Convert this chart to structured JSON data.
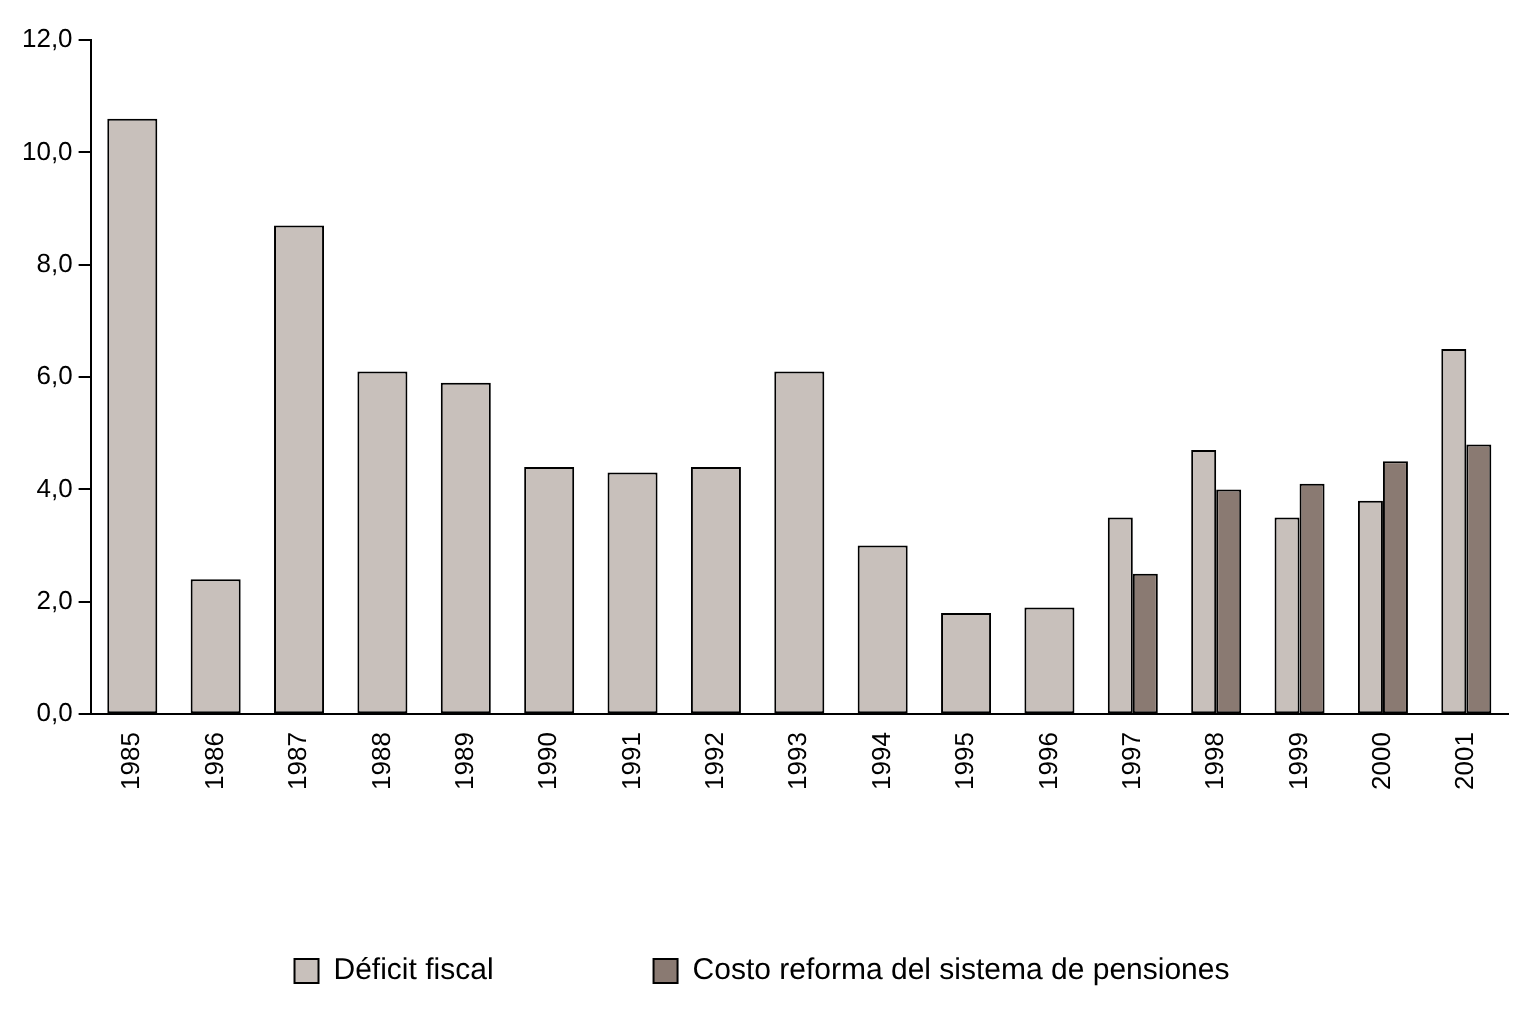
{
  "chart_data": {
    "type": "bar",
    "categories": [
      "1985",
      "1986",
      "1987",
      "1988",
      "1989",
      "1990",
      "1991",
      "1992",
      "1993",
      "1994",
      "1995",
      "1996",
      "1997",
      "1998",
      "1999",
      "2000",
      "2001"
    ],
    "series": [
      {
        "name": "Déficit fiscal",
        "color": "#c8c0bb",
        "values": [
          10.6,
          2.4,
          8.7,
          6.1,
          5.9,
          4.4,
          4.3,
          4.4,
          6.1,
          3.0,
          1.8,
          1.9,
          3.5,
          4.7,
          3.5,
          3.8,
          6.5
        ]
      },
      {
        "name": "Costo reforma del sistema de pensiones",
        "color": "#8a7a72",
        "values": [
          null,
          null,
          null,
          null,
          null,
          null,
          null,
          null,
          null,
          null,
          null,
          null,
          2.5,
          4.0,
          4.1,
          4.5,
          4.8
        ]
      }
    ],
    "ylim": [
      0,
      12
    ],
    "yticks": [
      {
        "value": 0,
        "label": "0,0"
      },
      {
        "value": 2,
        "label": "2,0"
      },
      {
        "value": 4,
        "label": "4,0"
      },
      {
        "value": 6,
        "label": "6,0"
      },
      {
        "value": 8,
        "label": "8,0"
      },
      {
        "value": 10,
        "label": "10,0"
      },
      {
        "value": 12,
        "label": "12,0"
      }
    ],
    "grid": false,
    "legend": "bottom"
  }
}
